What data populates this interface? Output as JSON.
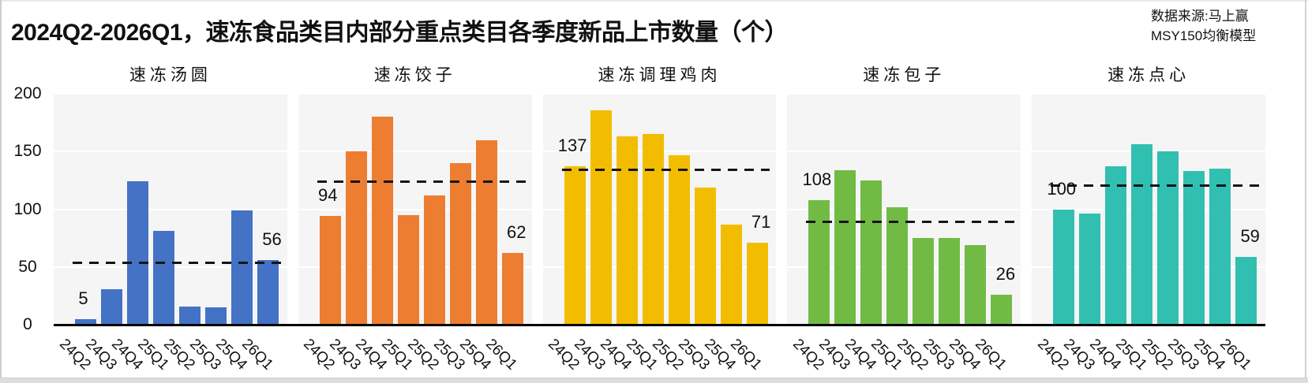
{
  "header": {
    "title": "2024Q2-2026Q1，速冻食品类目内部分重点类目各季度新品上市数量（个）",
    "source_line_1": "数据来源:马上赢",
    "source_line_2": "MSY150均衡模型"
  },
  "chart_data": {
    "type": "bar",
    "layout": "5 small-multiple panels, shared y-axis, horizontal gridlines on, no legend",
    "title": "2024Q2-2026Q1，速冻食品类目内部分重点类目各季度新品上市数量（个）",
    "xlabel": "",
    "ylabel": "",
    "ylim": [
      0,
      200
    ],
    "yticks": [
      0,
      50,
      100,
      150,
      200
    ],
    "categories": [
      "24Q2",
      "24Q3",
      "24Q4",
      "25Q1",
      "25Q2",
      "25Q3",
      "25Q4",
      "26Q1"
    ],
    "value_label_positions": [
      "first",
      "last"
    ],
    "mean_line_style": "black dashed horizontal line at series mean, per panel",
    "panels": [
      {
        "name": "速冻汤圆",
        "color": "#4472C4",
        "values": [
          5,
          31,
          124,
          81,
          16,
          15,
          99,
          56
        ],
        "mean": 53.4,
        "labels": {
          "first": "5",
          "last": "56"
        }
      },
      {
        "name": "速冻饺子",
        "color": "#ED7D31",
        "values": [
          94,
          150,
          180,
          95,
          112,
          140,
          160,
          62
        ],
        "mean": 124.1,
        "labels": {
          "first": "94",
          "last": "62"
        }
      },
      {
        "name": "速冻调理鸡肉",
        "color": "#F2BD01",
        "values": [
          137,
          186,
          163,
          165,
          147,
          119,
          87,
          71
        ],
        "mean": 134.3,
        "labels": {
          "first": "137",
          "last": "71"
        }
      },
      {
        "name": "速冻包子",
        "color": "#71BB45",
        "values": [
          108,
          134,
          125,
          102,
          75,
          75,
          69,
          26
        ],
        "mean": 89.3,
        "labels": {
          "first": "108",
          "last": "26"
        }
      },
      {
        "name": "速冻点心",
        "color": "#31BFB2",
        "values": [
          100,
          96,
          137,
          156,
          150,
          133,
          135,
          59
        ],
        "mean": 120.8,
        "labels": {
          "first": "100",
          "last": "59"
        }
      }
    ]
  }
}
